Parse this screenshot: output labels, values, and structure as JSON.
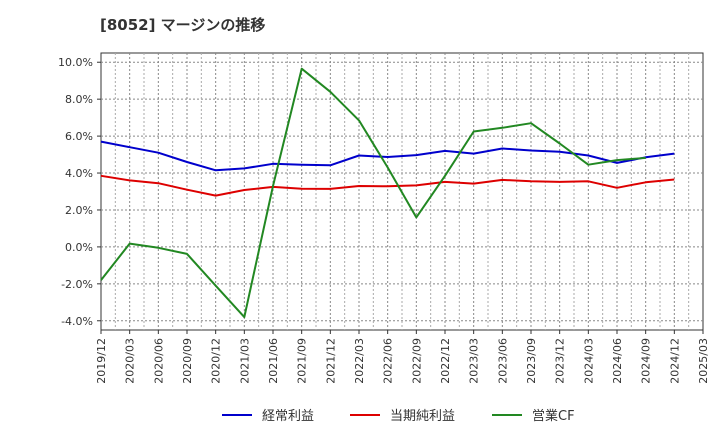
{
  "chart_data": {
    "type": "line",
    "title": "[8052]  マージンの推移",
    "x": [
      "2019/12",
      "2020/03",
      "2020/06",
      "2020/09",
      "2020/12",
      "2021/03",
      "2021/06",
      "2021/09",
      "2021/12",
      "2022/03",
      "2022/06",
      "2022/09",
      "2022/12",
      "2023/03",
      "2023/06",
      "2023/09",
      "2023/12",
      "2024/03",
      "2024/06",
      "2024/09",
      "2024/12",
      "2025/03"
    ],
    "ylim": [
      -4.5,
      10.5
    ],
    "yticks": [
      -4,
      -2,
      0,
      2,
      4,
      6,
      8,
      10
    ],
    "ytick_labels": [
      "-4.0%",
      "-2.0%",
      "0.0%",
      "2.0%",
      "4.0%",
      "6.0%",
      "8.0%",
      "10.0%"
    ],
    "grid": true,
    "legend_position": "bottom",
    "series": [
      {
        "name": "経常利益",
        "color": "#0000cc",
        "values": [
          5.7,
          5.4,
          5.1,
          4.6,
          4.15,
          4.25,
          4.5,
          4.45,
          4.42,
          4.95,
          4.87,
          4.97,
          5.2,
          5.05,
          5.33,
          5.22,
          5.15,
          4.95,
          4.55,
          4.85,
          5.05,
          null
        ]
      },
      {
        "name": "当期純利益",
        "color": "#dd0000",
        "values": [
          3.85,
          3.6,
          3.45,
          3.1,
          2.78,
          3.08,
          3.25,
          3.15,
          3.14,
          3.3,
          3.28,
          3.33,
          3.52,
          3.43,
          3.63,
          3.55,
          3.52,
          3.55,
          3.2,
          3.5,
          3.65,
          null
        ]
      },
      {
        "name": "営業CF",
        "color": "#228822",
        "values": [
          -1.8,
          0.18,
          -0.05,
          -0.38,
          -2.1,
          -3.8,
          3.3,
          9.65,
          8.4,
          6.85,
          4.3,
          1.6,
          3.85,
          6.25,
          6.45,
          6.7,
          5.6,
          4.45,
          4.7,
          4.82,
          null,
          null
        ]
      }
    ]
  }
}
